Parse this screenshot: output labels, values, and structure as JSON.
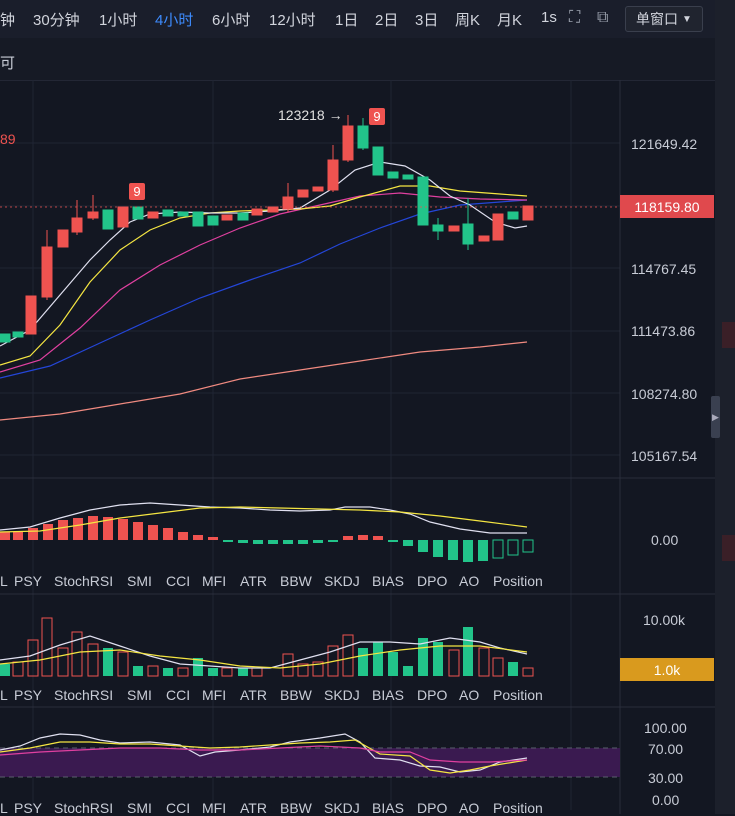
{
  "toolbar": {
    "timeframes": [
      "钟",
      "30分钟",
      "1小时",
      "4小时",
      "6小时",
      "12小时",
      "1日",
      "2日",
      "3日",
      "周K",
      "月K",
      "1s"
    ],
    "active": "4小时",
    "window_mode": "单窗口"
  },
  "sub_header": {
    "text": "可"
  },
  "main_chart": {
    "left_value": "89",
    "price_labels": [
      "121649.42",
      "114767.45",
      "111473.86",
      "108274.80",
      "105167.54"
    ],
    "current_price": "118159.80",
    "high_annotation": "123218 →",
    "signal_markers": [
      "9",
      "9"
    ],
    "colors": {
      "up": "#ef5350",
      "down": "#26a69a",
      "ma5": "#e0e0f0",
      "ma10": "#f5e642",
      "ma20": "#e040a0",
      "ma30": "#1e40c8",
      "ma60": "#f08a80"
    }
  },
  "macd_panel": {
    "zero_label": "0.00"
  },
  "volume_panel": {
    "top_label": "10.00k",
    "current_label": "1.0k",
    "current_color": "#d99a1e"
  },
  "kdj_panel": {
    "labels": [
      "100.00",
      "70.00",
      "30.00",
      "0.00"
    ]
  },
  "indicator_tabs": [
    "PSY",
    "StochRSI",
    "SMI",
    "CCI",
    "MFI",
    "ATR",
    "BBW",
    "SKDJ",
    "BIAS",
    "DPO",
    "AO",
    "Position"
  ],
  "icons": {
    "fullscreen": "expand-icon",
    "popout": "popout-icon",
    "dropdown": "caret-down-icon",
    "collapse": "chevron-right-icon"
  }
}
